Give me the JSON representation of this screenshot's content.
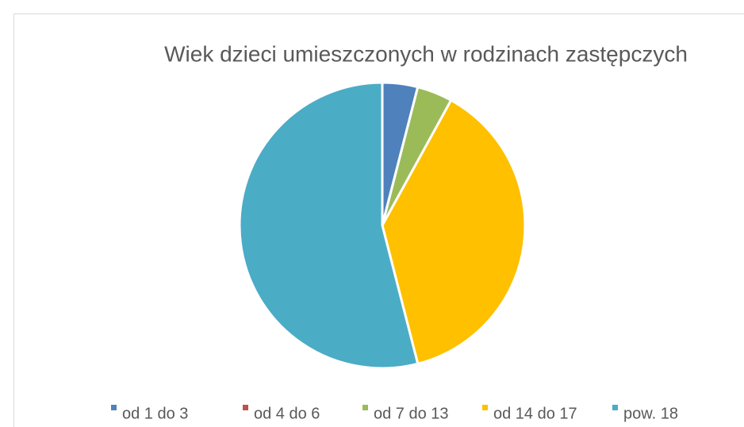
{
  "chart_data": {
    "type": "pie",
    "title": "Wiek dzieci umieszczonych w rodzinach zastępczych",
    "categories": [
      "od 1 do 3",
      "od 4 do 6",
      "od 7 do 13",
      "od 14 do 17",
      "pow. 18"
    ],
    "values": [
      4,
      0,
      4,
      38,
      54
    ],
    "colors": [
      "#4f81bd",
      "#c0504d",
      "#9bbb59",
      "#ffc000",
      "#4bacc6"
    ],
    "legend": "bottom"
  }
}
